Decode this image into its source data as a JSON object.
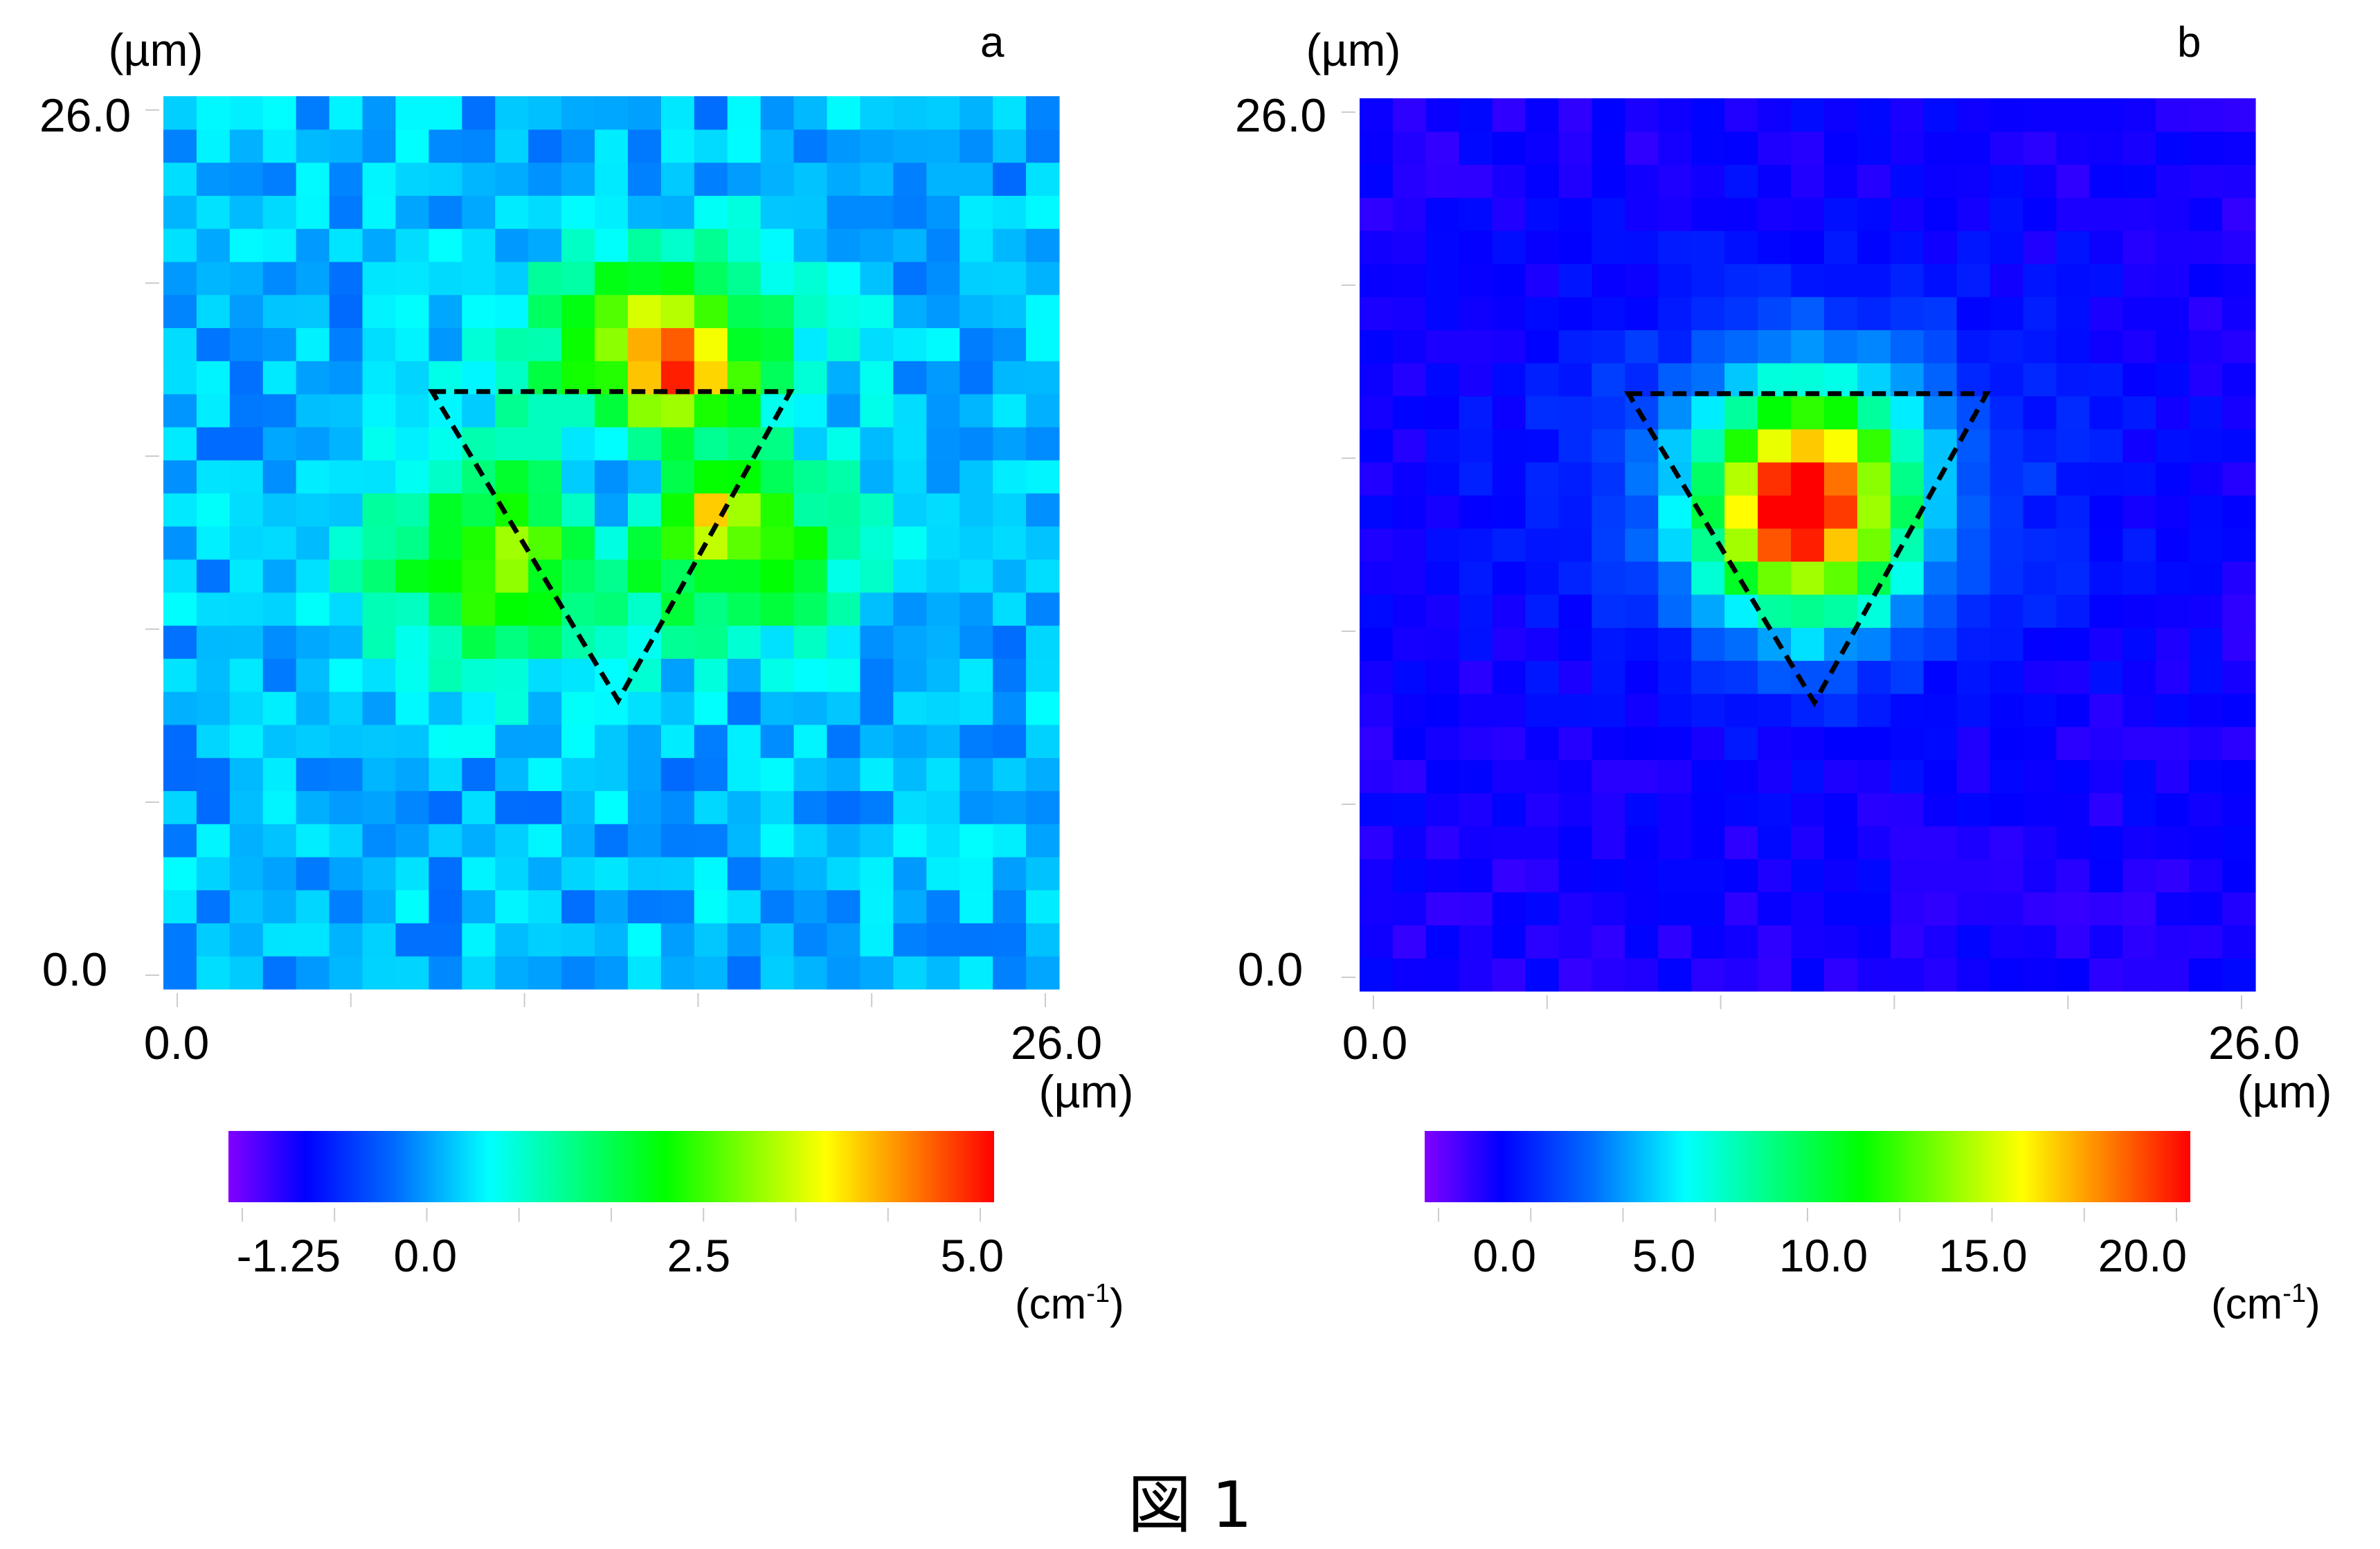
{
  "figure_caption": "図 1",
  "chart_data": [
    {
      "type": "heatmap",
      "panel_label": "a",
      "x_unit": "(µm)",
      "y_unit": "(µm)",
      "xlim": [
        0.0,
        26.0
      ],
      "ylim": [
        0.0,
        26.0
      ],
      "x_tick_labels": [
        "0.0",
        "26.0"
      ],
      "y_tick_labels": [
        "0.0",
        "26.0"
      ],
      "grid_size": [
        27,
        27
      ],
      "hotspots": [
        {
          "x": 14.8,
          "y": 17.6,
          "value": 5.2
        },
        {
          "x": 14.0,
          "y": 18.4,
          "value": 3.6
        },
        {
          "x": 16.0,
          "y": 13.8,
          "value": 4.6
        },
        {
          "x": 16.6,
          "y": 12.6,
          "value": 2.8
        },
        {
          "x": 10.0,
          "y": 12.4,
          "value": 2.9
        },
        {
          "x": 9.4,
          "y": 13.4,
          "value": 2.0
        }
      ],
      "colorbar": {
        "min": -1.8,
        "max": 5.2,
        "tick_labels": [
          "-1.25",
          "0.0",
          "2.5",
          "5.0"
        ],
        "tick_values": [
          -1.25,
          0.0,
          2.5,
          5.0
        ],
        "unit": "(cm",
        "unit_superscript": "-1",
        "unit_close": ")"
      },
      "annotation": {
        "type": "triangle",
        "style": "dashed",
        "vertices": [
          [
            7.8,
            17.4
          ],
          [
            18.2,
            17.4
          ],
          [
            13.2,
            8.4
          ]
        ]
      }
    },
    {
      "type": "heatmap",
      "panel_label": "b",
      "x_unit": "(µm)",
      "y_unit": "(µm)",
      "xlim": [
        0.0,
        26.0
      ],
      "ylim": [
        0.0,
        26.0
      ],
      "x_tick_labels": [
        "0.0",
        "26.0"
      ],
      "y_tick_labels": [
        "0.0",
        "26.0"
      ],
      "grid_size": [
        27,
        27
      ],
      "hotspots": [
        {
          "x": 13.0,
          "y": 14.4,
          "value": 21.0
        },
        {
          "x": 11.8,
          "y": 13.6,
          "value": 18.0
        },
        {
          "x": 14.0,
          "y": 15.0,
          "value": 15.0
        }
      ],
      "colorbar": {
        "min": -2.5,
        "max": 21.5,
        "tick_labels": [
          "0.0",
          "5.0",
          "10.0",
          "15.0",
          "20.0"
        ],
        "tick_values": [
          0.0,
          5.0,
          10.0,
          15.0,
          20.0
        ],
        "unit": "(cm",
        "unit_superscript": "-1",
        "unit_close": ")"
      },
      "annotation": {
        "type": "triangle",
        "style": "dashed",
        "vertices": [
          [
            7.8,
            17.4
          ],
          [
            18.2,
            17.4
          ],
          [
            13.2,
            8.4
          ]
        ]
      }
    }
  ]
}
